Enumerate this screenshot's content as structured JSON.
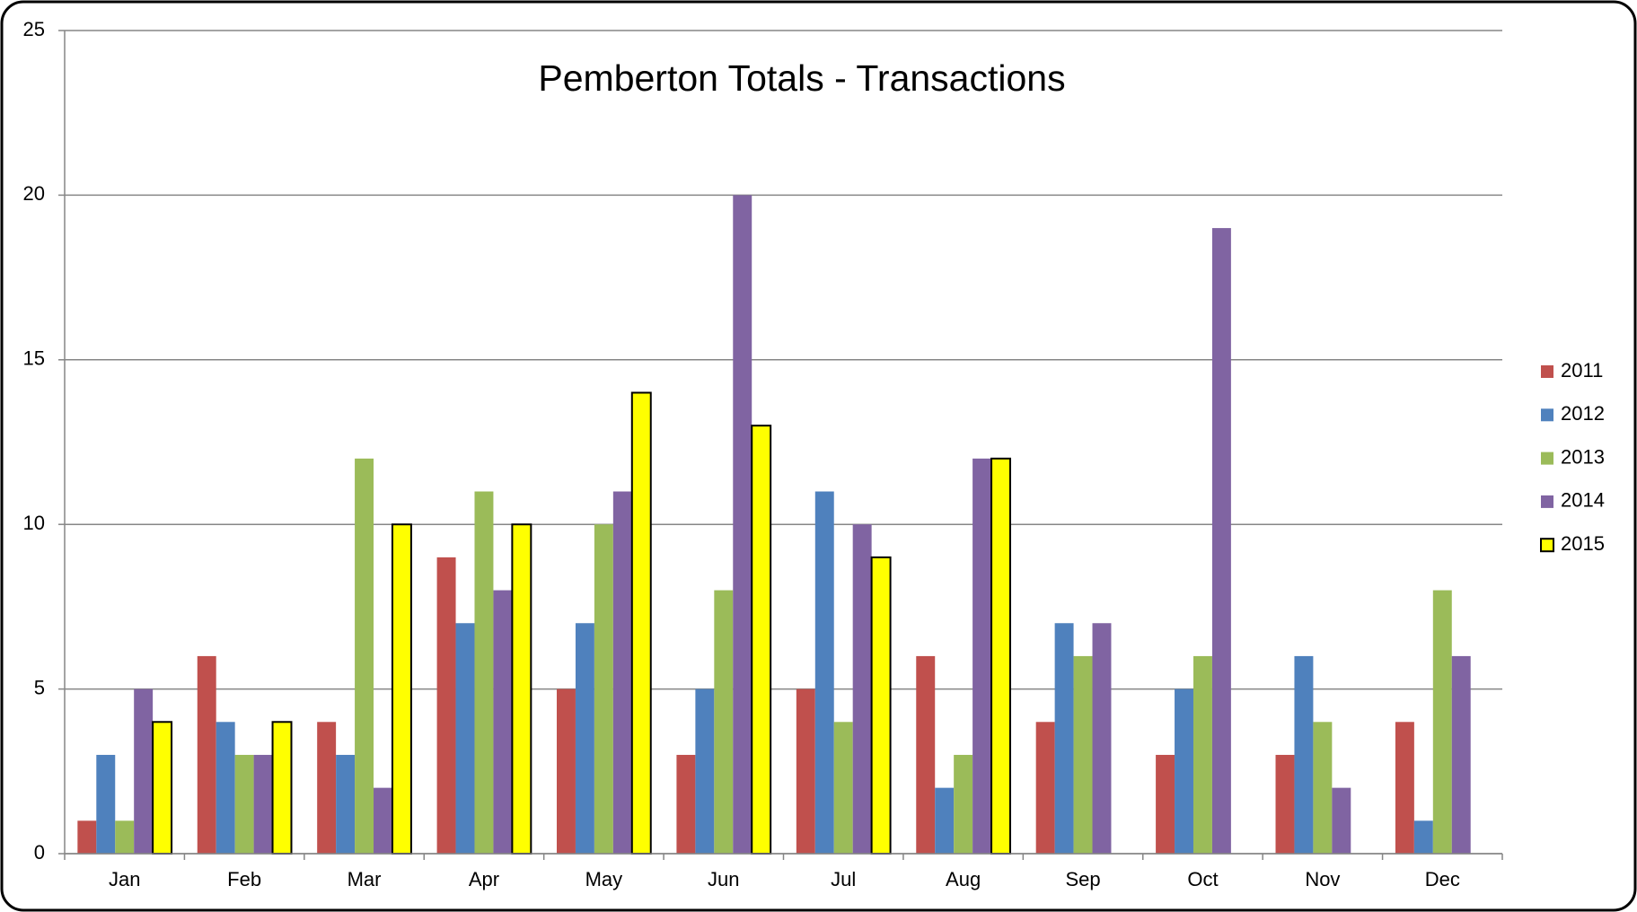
{
  "chart_data": {
    "type": "bar",
    "title": "Pemberton Totals - Transactions",
    "categories": [
      "Jan",
      "Feb",
      "Mar",
      "Apr",
      "May",
      "Jun",
      "Jul",
      "Aug",
      "Sep",
      "Oct",
      "Nov",
      "Dec"
    ],
    "series": [
      {
        "name": "2011",
        "color": "#c0504d",
        "values": [
          1,
          6,
          4,
          9,
          5,
          3,
          5,
          6,
          4,
          3,
          3,
          4
        ]
      },
      {
        "name": "2012",
        "color": "#4f81bd",
        "values": [
          3,
          4,
          3,
          7,
          7,
          5,
          11,
          2,
          7,
          5,
          6,
          1
        ]
      },
      {
        "name": "2013",
        "color": "#9bbb59",
        "values": [
          1,
          3,
          12,
          11,
          10,
          8,
          4,
          3,
          6,
          6,
          4,
          8
        ]
      },
      {
        "name": "2014",
        "color": "#8064a2",
        "values": [
          5,
          3,
          2,
          8,
          11,
          20,
          10,
          12,
          7,
          19,
          2,
          6
        ]
      },
      {
        "name": "2015",
        "color": "#ffff00",
        "edgecolor": "#000000",
        "values": [
          4,
          4,
          10,
          10,
          14,
          13,
          9,
          12,
          null,
          null,
          null,
          null
        ]
      }
    ],
    "ylim": [
      0,
      25
    ],
    "yticks": [
      0,
      5,
      10,
      15,
      20,
      25
    ],
    "grid": true,
    "legend": "right"
  }
}
